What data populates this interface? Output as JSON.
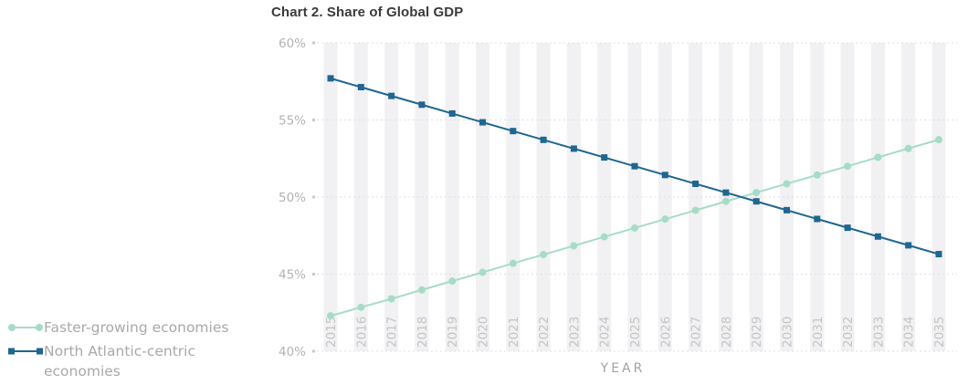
{
  "chart_data": {
    "type": "line",
    "title": "Chart 2. Share of Global GDP",
    "xlabel": "YEAR",
    "ylabel": "",
    "x": [
      "2015",
      "2016",
      "2017",
      "2018",
      "2019",
      "2020",
      "2021",
      "2022",
      "2023",
      "2024",
      "2025",
      "2026",
      "2027",
      "2028",
      "2029",
      "2030",
      "2031",
      "2032",
      "2033",
      "2034",
      "2035"
    ],
    "ylim": [
      40,
      60
    ],
    "yticks": [
      "40%",
      "45%",
      "50%",
      "55%",
      "60%"
    ],
    "series": [
      {
        "name": "Faster-growing economies",
        "color": "#a6dcc7",
        "marker": "circle",
        "values": [
          42.3,
          42.85,
          43.4,
          43.98,
          44.55,
          45.12,
          45.7,
          46.27,
          46.84,
          47.42,
          47.99,
          48.57,
          49.14,
          49.72,
          50.29,
          50.86,
          51.43,
          52.0,
          52.58,
          53.15,
          53.72
        ]
      },
      {
        "name": "North Atlantic-centric economies",
        "color": "#1f6690",
        "marker": "square",
        "values": [
          57.7,
          57.13,
          56.56,
          55.99,
          55.42,
          54.85,
          54.28,
          53.71,
          53.14,
          52.57,
          52.0,
          51.43,
          50.86,
          50.29,
          49.72,
          49.15,
          48.58,
          48.01,
          47.44,
          46.87,
          46.3
        ]
      }
    ],
    "grid": false,
    "legend_position": "left"
  }
}
